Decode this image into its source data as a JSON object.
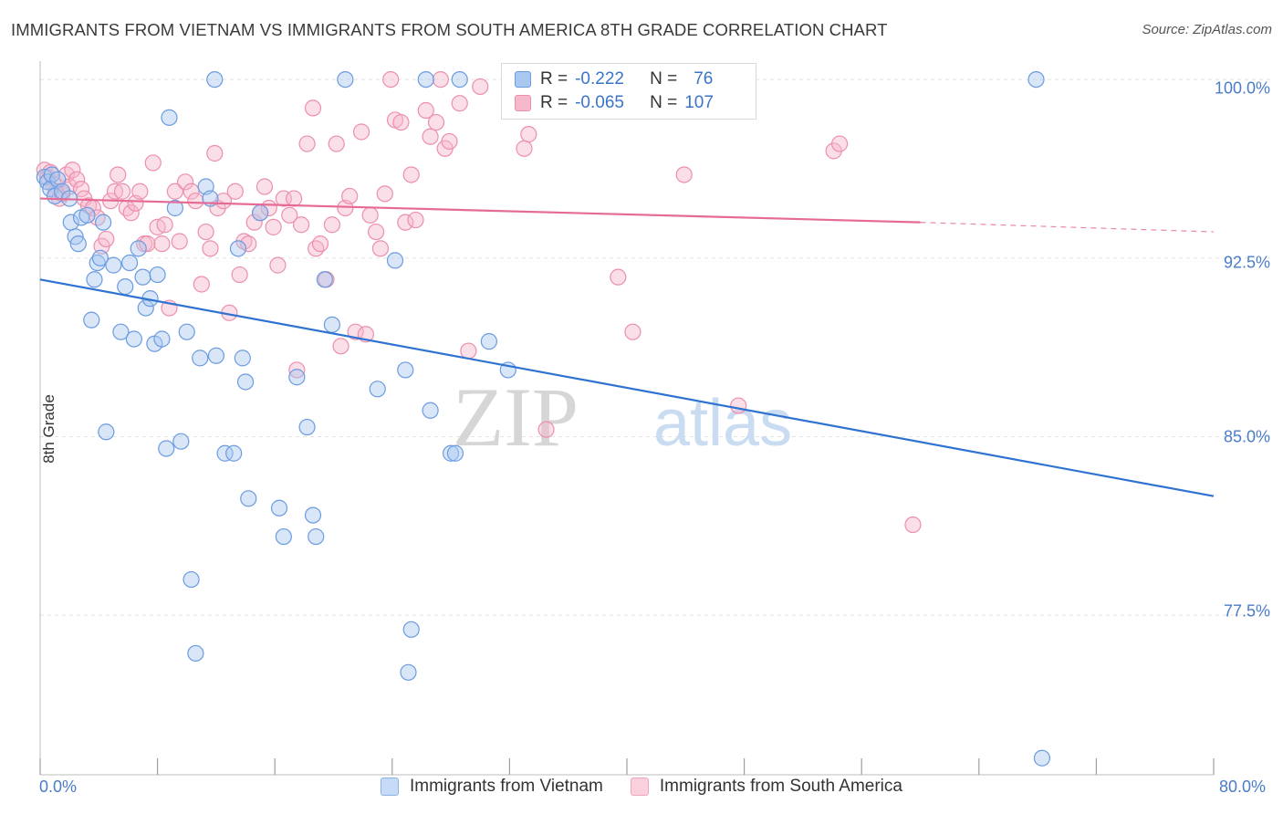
{
  "title": "IMMIGRANTS FROM VIETNAM VS IMMIGRANTS FROM SOUTH AMERICA 8TH GRADE CORRELATION CHART",
  "source": "Source: ZipAtlas.com",
  "watermark": {
    "zip": "ZIP",
    "atlas": "atlas"
  },
  "colors": {
    "vietnam_fill": "#a9c8f0",
    "vietnam_stroke": "#6b9be0",
    "vietnam_line": "#2f73d0",
    "sa_fill": "#f6b9cc",
    "sa_stroke": "#ec8fac",
    "sa_line": "#e56b95",
    "axis_text": "#4a7cc9",
    "grid": "#e3e3e3"
  },
  "legend": {
    "row1": {
      "r_label": "R =",
      "r_value": "-0.222",
      "n_label": "N =",
      "n_value": "76"
    },
    "row2": {
      "r_label": "R =",
      "r_value": "-0.065",
      "n_label": "N =",
      "n_value": "107"
    }
  },
  "chart_data": {
    "type": "scatter",
    "title": "IMMIGRANTS FROM VIETNAM VS IMMIGRANTS FROM SOUTH AMERICA 8TH GRADE CORRELATION CHART",
    "xlabel": "",
    "ylabel": "8th Grade",
    "xlim": [
      0,
      80
    ],
    "ylim": [
      70.8,
      101.0
    ],
    "x_tick_labels": [
      "0.0%",
      "80.0%"
    ],
    "y_ticks": [
      100.0,
      92.5,
      85.0,
      77.5
    ],
    "y_tick_labels": [
      "100.0%",
      "92.5%",
      "85.0%",
      "77.5%"
    ],
    "grid": true,
    "legend_position": "top-center",
    "series": [
      {
        "name": "Immigrants from Vietnam",
        "trend": {
          "x": [
            0,
            80
          ],
          "y": [
            91.6,
            82.5
          ]
        },
        "points": [
          [
            0.3,
            95.9
          ],
          [
            0.5,
            95.7
          ],
          [
            0.7,
            95.4
          ],
          [
            0.8,
            96.0
          ],
          [
            1.0,
            95.1
          ],
          [
            1.2,
            95.8
          ],
          [
            1.5,
            95.3
          ],
          [
            2.0,
            95.0
          ],
          [
            2.1,
            94.0
          ],
          [
            2.4,
            93.4
          ],
          [
            2.6,
            93.1
          ],
          [
            2.8,
            94.2
          ],
          [
            3.2,
            94.3
          ],
          [
            3.5,
            89.9
          ],
          [
            3.7,
            91.6
          ],
          [
            3.9,
            92.3
          ],
          [
            4.1,
            92.5
          ],
          [
            4.3,
            94.0
          ],
          [
            4.5,
            85.2
          ],
          [
            5.0,
            92.2
          ],
          [
            5.5,
            89.4
          ],
          [
            5.8,
            91.3
          ],
          [
            6.1,
            92.3
          ],
          [
            6.4,
            89.1
          ],
          [
            6.7,
            92.9
          ],
          [
            7.0,
            91.7
          ],
          [
            7.2,
            90.4
          ],
          [
            7.5,
            90.8
          ],
          [
            7.8,
            88.9
          ],
          [
            8.0,
            91.8
          ],
          [
            8.3,
            89.1
          ],
          [
            8.6,
            84.5
          ],
          [
            8.8,
            98.4
          ],
          [
            9.2,
            94.6
          ],
          [
            9.6,
            84.8
          ],
          [
            10.0,
            89.4
          ],
          [
            10.3,
            79.0
          ],
          [
            10.6,
            75.9
          ],
          [
            10.9,
            88.3
          ],
          [
            11.3,
            95.5
          ],
          [
            11.6,
            95.0
          ],
          [
            11.9,
            100.0
          ],
          [
            12.0,
            88.4
          ],
          [
            12.6,
            84.3
          ],
          [
            13.2,
            84.3
          ],
          [
            13.5,
            92.9
          ],
          [
            13.8,
            88.3
          ],
          [
            14.0,
            87.3
          ],
          [
            14.2,
            82.4
          ],
          [
            15.0,
            94.4
          ],
          [
            16.3,
            82.0
          ],
          [
            16.6,
            80.8
          ],
          [
            17.5,
            87.5
          ],
          [
            18.2,
            85.4
          ],
          [
            18.6,
            81.7
          ],
          [
            18.8,
            80.8
          ],
          [
            19.4,
            91.6
          ],
          [
            19.9,
            89.7
          ],
          [
            20.8,
            100.0
          ],
          [
            23.0,
            87.0
          ],
          [
            24.2,
            92.4
          ],
          [
            24.9,
            87.8
          ],
          [
            25.1,
            75.1
          ],
          [
            25.3,
            76.9
          ],
          [
            26.3,
            100.0
          ],
          [
            26.6,
            86.1
          ],
          [
            28.0,
            84.3
          ],
          [
            28.3,
            84.3
          ],
          [
            28.6,
            100.0
          ],
          [
            30.6,
            89.0
          ],
          [
            31.9,
            87.8
          ],
          [
            43.3,
            100.0
          ],
          [
            43.8,
            100.0
          ],
          [
            67.9,
            100.0
          ],
          [
            68.3,
            71.5
          ]
        ]
      },
      {
        "name": "Immigrants from South America",
        "trend": {
          "x": [
            0,
            60
          ],
          "y": [
            95.0,
            94.0
          ]
        },
        "trend_dashed": {
          "x": [
            60,
            80
          ],
          "y": [
            94.0,
            93.6
          ]
        },
        "points": [
          [
            0.3,
            96.2
          ],
          [
            0.5,
            95.9
          ],
          [
            0.7,
            96.1
          ],
          [
            0.9,
            95.6
          ],
          [
            1.1,
            95.3
          ],
          [
            1.3,
            95.0
          ],
          [
            1.5,
            95.2
          ],
          [
            1.8,
            96.0
          ],
          [
            2.0,
            95.5
          ],
          [
            2.2,
            96.2
          ],
          [
            2.5,
            95.8
          ],
          [
            2.8,
            95.4
          ],
          [
            3.0,
            95.0
          ],
          [
            3.3,
            94.7
          ],
          [
            3.6,
            94.6
          ],
          [
            3.9,
            94.2
          ],
          [
            4.2,
            93.0
          ],
          [
            4.5,
            93.3
          ],
          [
            4.8,
            94.9
          ],
          [
            5.1,
            95.3
          ],
          [
            5.3,
            96.0
          ],
          [
            5.6,
            95.3
          ],
          [
            5.9,
            94.6
          ],
          [
            6.2,
            94.4
          ],
          [
            6.5,
            94.8
          ],
          [
            6.8,
            95.3
          ],
          [
            7.1,
            93.1
          ],
          [
            7.3,
            93.1
          ],
          [
            7.7,
            96.5
          ],
          [
            8.0,
            93.8
          ],
          [
            8.3,
            93.1
          ],
          [
            8.5,
            93.9
          ],
          [
            8.8,
            90.4
          ],
          [
            9.2,
            95.3
          ],
          [
            9.5,
            93.2
          ],
          [
            9.9,
            95.7
          ],
          [
            10.3,
            95.3
          ],
          [
            10.6,
            94.9
          ],
          [
            11.0,
            91.4
          ],
          [
            11.3,
            93.6
          ],
          [
            11.6,
            92.9
          ],
          [
            11.9,
            96.9
          ],
          [
            12.1,
            94.6
          ],
          [
            12.5,
            94.9
          ],
          [
            12.9,
            90.2
          ],
          [
            13.3,
            95.3
          ],
          [
            13.6,
            91.8
          ],
          [
            13.9,
            93.2
          ],
          [
            14.2,
            93.1
          ],
          [
            14.6,
            94.0
          ],
          [
            15.0,
            94.4
          ],
          [
            15.3,
            95.5
          ],
          [
            15.6,
            94.6
          ],
          [
            15.9,
            93.8
          ],
          [
            16.2,
            92.2
          ],
          [
            16.6,
            95.0
          ],
          [
            17.0,
            94.3
          ],
          [
            17.3,
            95.0
          ],
          [
            17.5,
            87.8
          ],
          [
            17.8,
            93.9
          ],
          [
            18.2,
            97.3
          ],
          [
            18.6,
            98.8
          ],
          [
            18.8,
            92.9
          ],
          [
            19.1,
            93.1
          ],
          [
            19.5,
            91.6
          ],
          [
            19.9,
            93.9
          ],
          [
            20.2,
            97.3
          ],
          [
            20.5,
            88.8
          ],
          [
            20.8,
            94.6
          ],
          [
            21.1,
            95.1
          ],
          [
            21.5,
            89.4
          ],
          [
            21.9,
            97.8
          ],
          [
            22.2,
            89.3
          ],
          [
            22.5,
            94.3
          ],
          [
            22.9,
            93.6
          ],
          [
            23.2,
            92.9
          ],
          [
            23.5,
            95.2
          ],
          [
            23.9,
            100.0
          ],
          [
            24.2,
            98.3
          ],
          [
            24.6,
            98.2
          ],
          [
            24.9,
            94.0
          ],
          [
            25.3,
            96.0
          ],
          [
            25.6,
            94.1
          ],
          [
            26.3,
            98.7
          ],
          [
            26.6,
            97.6
          ],
          [
            27.0,
            98.2
          ],
          [
            27.3,
            100.0
          ],
          [
            27.6,
            97.1
          ],
          [
            27.9,
            97.4
          ],
          [
            28.6,
            99.0
          ],
          [
            29.2,
            88.6
          ],
          [
            30.0,
            99.7
          ],
          [
            32.6,
            100.0
          ],
          [
            33.0,
            97.1
          ],
          [
            33.3,
            97.7
          ],
          [
            34.5,
            85.3
          ],
          [
            35.3,
            100.0
          ],
          [
            39.4,
            91.7
          ],
          [
            40.4,
            89.4
          ],
          [
            43.9,
            96.0
          ],
          [
            47.6,
            86.3
          ],
          [
            54.1,
            97.0
          ],
          [
            54.5,
            97.3
          ],
          [
            59.5,
            81.3
          ]
        ]
      }
    ]
  },
  "bottom_legend": [
    "Immigrants from Vietnam",
    "Immigrants from South America"
  ]
}
